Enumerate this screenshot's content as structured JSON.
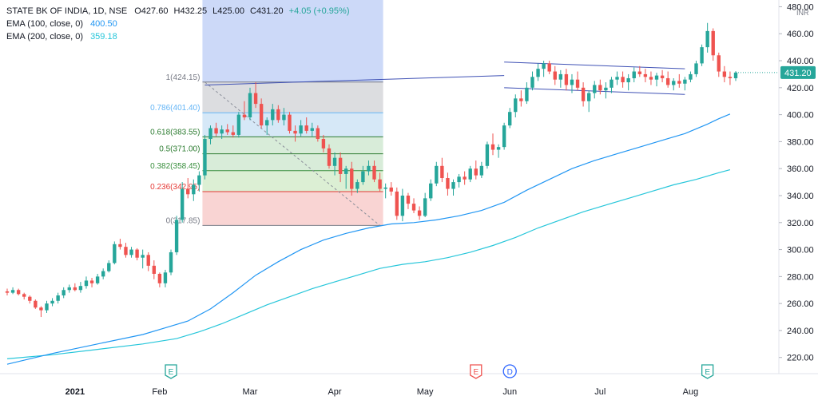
{
  "legend": {
    "symbol": "STATE BK OF INDIA, 1D, NSE",
    "open": "O427.60",
    "high": "H432.25",
    "low": "L425.00",
    "close": "C431.20",
    "change": "+4.05 (+0.95%)",
    "ema100_label": "EMA (100, close, 0)",
    "ema100_value": "400.50",
    "ema200_label": "EMA (200, close, 0)",
    "ema200_value": "359.18"
  },
  "colors": {
    "up": "#26a69a",
    "down": "#ef5350",
    "ema100": "#2196f3",
    "ema200": "#26c6da",
    "trendline": "#3f51b5",
    "price_tag": "#26a69a"
  },
  "chart_data": {
    "type": "candlestick",
    "x_ticks": [
      "2021",
      "Feb",
      "Mar",
      "Apr",
      "May",
      "Jun",
      "Jul",
      "Aug"
    ],
    "y_ticks": [
      220,
      240,
      260,
      280,
      300,
      320,
      340,
      360,
      380,
      400,
      420,
      440,
      460,
      480
    ],
    "currency": "INR",
    "last_price": "431.20",
    "ylim": [
      208,
      485
    ],
    "ohlc": [
      [
        269,
        271,
        266,
        268
      ],
      [
        268,
        272,
        267,
        270
      ],
      [
        270,
        271,
        266,
        267
      ],
      [
        267,
        268,
        263,
        265
      ],
      [
        265,
        266,
        260,
        262
      ],
      [
        262,
        263,
        256,
        257
      ],
      [
        257,
        258,
        250,
        255
      ],
      [
        255,
        262,
        253,
        260
      ],
      [
        260,
        264,
        258,
        262
      ],
      [
        262,
        268,
        260,
        266
      ],
      [
        266,
        272,
        264,
        270
      ],
      [
        270,
        274,
        268,
        272
      ],
      [
        272,
        275,
        269,
        270
      ],
      [
        270,
        276,
        268,
        273
      ],
      [
        273,
        280,
        271,
        277
      ],
      [
        277,
        279,
        272,
        275
      ],
      [
        275,
        282,
        274,
        280
      ],
      [
        280,
        286,
        278,
        284
      ],
      [
        284,
        292,
        283,
        290
      ],
      [
        290,
        306,
        289,
        304
      ],
      [
        304,
        308,
        300,
        302
      ],
      [
        302,
        305,
        294,
        296
      ],
      [
        296,
        302,
        294,
        300
      ],
      [
        300,
        301,
        292,
        294
      ],
      [
        294,
        300,
        286,
        296
      ],
      [
        296,
        298,
        284,
        288
      ],
      [
        288,
        292,
        278,
        282
      ],
      [
        282,
        283,
        272,
        275
      ],
      [
        275,
        285,
        272,
        283
      ],
      [
        283,
        300,
        281,
        298
      ],
      [
        298,
        325,
        296,
        322
      ],
      [
        322,
        350,
        320,
        345
      ],
      [
        345,
        353,
        338,
        341
      ],
      [
        341,
        352,
        336,
        348
      ],
      [
        348,
        358,
        343,
        355
      ],
      [
        355,
        385,
        352,
        382
      ],
      [
        382,
        392,
        378,
        390
      ],
      [
        390,
        394,
        384,
        386
      ],
      [
        386,
        392,
        382,
        389
      ],
      [
        389,
        393,
        385,
        387
      ],
      [
        387,
        392,
        383,
        385
      ],
      [
        385,
        402,
        383,
        400
      ],
      [
        400,
        410,
        396,
        398
      ],
      [
        398,
        420,
        396,
        416
      ],
      [
        416,
        424,
        405,
        408
      ],
      [
        408,
        412,
        390,
        392
      ],
      [
        392,
        398,
        385,
        396
      ],
      [
        396,
        408,
        392,
        404
      ],
      [
        404,
        407,
        394,
        396
      ],
      [
        396,
        405,
        392,
        400
      ],
      [
        400,
        402,
        386,
        388
      ],
      [
        388,
        392,
        380,
        386
      ],
      [
        386,
        396,
        384,
        392
      ],
      [
        392,
        398,
        386,
        388
      ],
      [
        388,
        394,
        384,
        390
      ],
      [
        390,
        392,
        380,
        382
      ],
      [
        382,
        385,
        372,
        375
      ],
      [
        375,
        378,
        360,
        362
      ],
      [
        362,
        372,
        355,
        368
      ],
      [
        368,
        372,
        350,
        356
      ],
      [
        356,
        362,
        345,
        360
      ],
      [
        360,
        365,
        340,
        345
      ],
      [
        345,
        352,
        342,
        350
      ],
      [
        350,
        362,
        348,
        358
      ],
      [
        358,
        366,
        355,
        362
      ],
      [
        362,
        366,
        350,
        352
      ],
      [
        352,
        357,
        343,
        345
      ],
      [
        345,
        349,
        338,
        346
      ],
      [
        346,
        350,
        340,
        343
      ],
      [
        343,
        346,
        322,
        325
      ],
      [
        325,
        345,
        321,
        340
      ],
      [
        340,
        342,
        330,
        334
      ],
      [
        334,
        338,
        327,
        329
      ],
      [
        329,
        332,
        322,
        325
      ],
      [
        325,
        342,
        324,
        338
      ],
      [
        338,
        352,
        336,
        349
      ],
      [
        349,
        365,
        347,
        362
      ],
      [
        362,
        368,
        350,
        353
      ],
      [
        353,
        357,
        340,
        345
      ],
      [
        345,
        352,
        340,
        350
      ],
      [
        350,
        356,
        346,
        354
      ],
      [
        354,
        358,
        348,
        352
      ],
      [
        352,
        362,
        350,
        360
      ],
      [
        360,
        366,
        352,
        355
      ],
      [
        355,
        365,
        353,
        362
      ],
      [
        362,
        380,
        360,
        378
      ],
      [
        378,
        386,
        370,
        374
      ],
      [
        374,
        378,
        368,
        376
      ],
      [
        376,
        394,
        374,
        392
      ],
      [
        392,
        405,
        390,
        402
      ],
      [
        402,
        415,
        398,
        412
      ],
      [
        412,
        418,
        406,
        410
      ],
      [
        410,
        424,
        408,
        420
      ],
      [
        420,
        432,
        418,
        428
      ],
      [
        428,
        438,
        425,
        434
      ],
      [
        434,
        440,
        428,
        438
      ],
      [
        438,
        440,
        430,
        432
      ],
      [
        432,
        436,
        422,
        426
      ],
      [
        426,
        433,
        420,
        430
      ],
      [
        430,
        434,
        418,
        422
      ],
      [
        422,
        430,
        416,
        426
      ],
      [
        426,
        432,
        418,
        420
      ],
      [
        420,
        424,
        406,
        410
      ],
      [
        410,
        418,
        402,
        416
      ],
      [
        416,
        425,
        412,
        422
      ],
      [
        422,
        426,
        415,
        418
      ],
      [
        418,
        424,
        412,
        420
      ],
      [
        420,
        428,
        416,
        426
      ],
      [
        426,
        432,
        422,
        428
      ],
      [
        428,
        432,
        420,
        424
      ],
      [
        424,
        430,
        418,
        427
      ],
      [
        427,
        435,
        424,
        432
      ],
      [
        432,
        436,
        428,
        430
      ],
      [
        430,
        434,
        424,
        428
      ],
      [
        428,
        432,
        422,
        426
      ],
      [
        426,
        431,
        421,
        429
      ],
      [
        429,
        433,
        424,
        427
      ],
      [
        427,
        432,
        420,
        422
      ],
      [
        422,
        427,
        418,
        425
      ],
      [
        425,
        430,
        420,
        423
      ],
      [
        423,
        428,
        418,
        426
      ],
      [
        426,
        432,
        424,
        430
      ],
      [
        430,
        440,
        428,
        438
      ],
      [
        438,
        452,
        436,
        450
      ],
      [
        450,
        468,
        446,
        462
      ],
      [
        462,
        464,
        440,
        444
      ],
      [
        444,
        446,
        428,
        432
      ],
      [
        432,
        436,
        424,
        428
      ],
      [
        428,
        432,
        422,
        427
      ],
      [
        427,
        432.25,
        425,
        431.2
      ]
    ],
    "ema100": [
      [
        0,
        215
      ],
      [
        8,
        223
      ],
      [
        16,
        230
      ],
      [
        24,
        237
      ],
      [
        28,
        242
      ],
      [
        32,
        247
      ],
      [
        36,
        256
      ],
      [
        40,
        268
      ],
      [
        44,
        281
      ],
      [
        48,
        291
      ],
      [
        52,
        300
      ],
      [
        56,
        307
      ],
      [
        60,
        312
      ],
      [
        64,
        316
      ],
      [
        68,
        319
      ],
      [
        72,
        320
      ],
      [
        76,
        322
      ],
      [
        80,
        325
      ],
      [
        84,
        329
      ],
      [
        88,
        335
      ],
      [
        92,
        344
      ],
      [
        96,
        352
      ],
      [
        100,
        360
      ],
      [
        104,
        366
      ],
      [
        108,
        371
      ],
      [
        112,
        376
      ],
      [
        116,
        381
      ],
      [
        120,
        386
      ],
      [
        124,
        393
      ],
      [
        126,
        397
      ],
      [
        128,
        400.5
      ]
    ],
    "ema200": [
      [
        0,
        219
      ],
      [
        8,
        222
      ],
      [
        16,
        226
      ],
      [
        24,
        230
      ],
      [
        30,
        234
      ],
      [
        34,
        239
      ],
      [
        38,
        245
      ],
      [
        42,
        252
      ],
      [
        46,
        259
      ],
      [
        50,
        265
      ],
      [
        54,
        271
      ],
      [
        58,
        276
      ],
      [
        62,
        281
      ],
      [
        66,
        286
      ],
      [
        70,
        289
      ],
      [
        74,
        291
      ],
      [
        78,
        294
      ],
      [
        82,
        298
      ],
      [
        86,
        303
      ],
      [
        90,
        309
      ],
      [
        94,
        316
      ],
      [
        98,
        322
      ],
      [
        102,
        328
      ],
      [
        106,
        333
      ],
      [
        110,
        338
      ],
      [
        114,
        343
      ],
      [
        118,
        348
      ],
      [
        122,
        352
      ],
      [
        126,
        357
      ],
      [
        128,
        359.18
      ]
    ],
    "fibonacci": {
      "levels": [
        {
          "label": "1(424.15)",
          "value": 424.15,
          "color": "#787b86",
          "fill": "#dcdde0"
        },
        {
          "label": "0.786(401.40)",
          "value": 401.4,
          "color": "#64b5f6",
          "fill": "#d6e8f7"
        },
        {
          "label": "0.618(383.55)",
          "value": 383.55,
          "color": "#2e7d32",
          "fill": "#d8ecd9"
        },
        {
          "label": "0.5(371.00)",
          "value": 371.0,
          "color": "#2e7d32",
          "fill": "#d8ecd9"
        },
        {
          "label": "0.382(358.45)",
          "value": 358.45,
          "color": "#388e3c",
          "fill": "#dcefd4"
        },
        {
          "label": "0.236(342.95)",
          "value": 342.95,
          "color": "#e53935",
          "fill": "#f9d4d3"
        },
        {
          "label": "0(317.85)",
          "value": 317.85,
          "color": "#787b86",
          "fill": "#f9d4d3"
        }
      ],
      "start_index": 35,
      "end_index": 66,
      "trend_from": [
        35,
        424.15
      ],
      "trend_to": [
        66,
        317.85
      ]
    },
    "trendlines": [
      {
        "from": [
          35,
          422
        ],
        "to": [
          88,
          429
        ]
      },
      {
        "from": [
          88,
          439
        ],
        "to": [
          120,
          434
        ]
      },
      {
        "from": [
          88,
          420
        ],
        "to": [
          120,
          415
        ]
      }
    ],
    "events": [
      {
        "label": "E",
        "index": 29,
        "type": "earnings",
        "color": "#26a69a"
      },
      {
        "label": "E",
        "index": 83,
        "type": "earnings",
        "color": "#ef5350"
      },
      {
        "label": "D",
        "index": 89,
        "type": "dividend",
        "color": "#2962ff"
      },
      {
        "label": "E",
        "index": 124,
        "type": "earnings",
        "color": "#26a69a"
      }
    ],
    "month_starts": [
      12,
      27,
      43,
      58,
      74,
      89,
      105,
      121
    ]
  }
}
